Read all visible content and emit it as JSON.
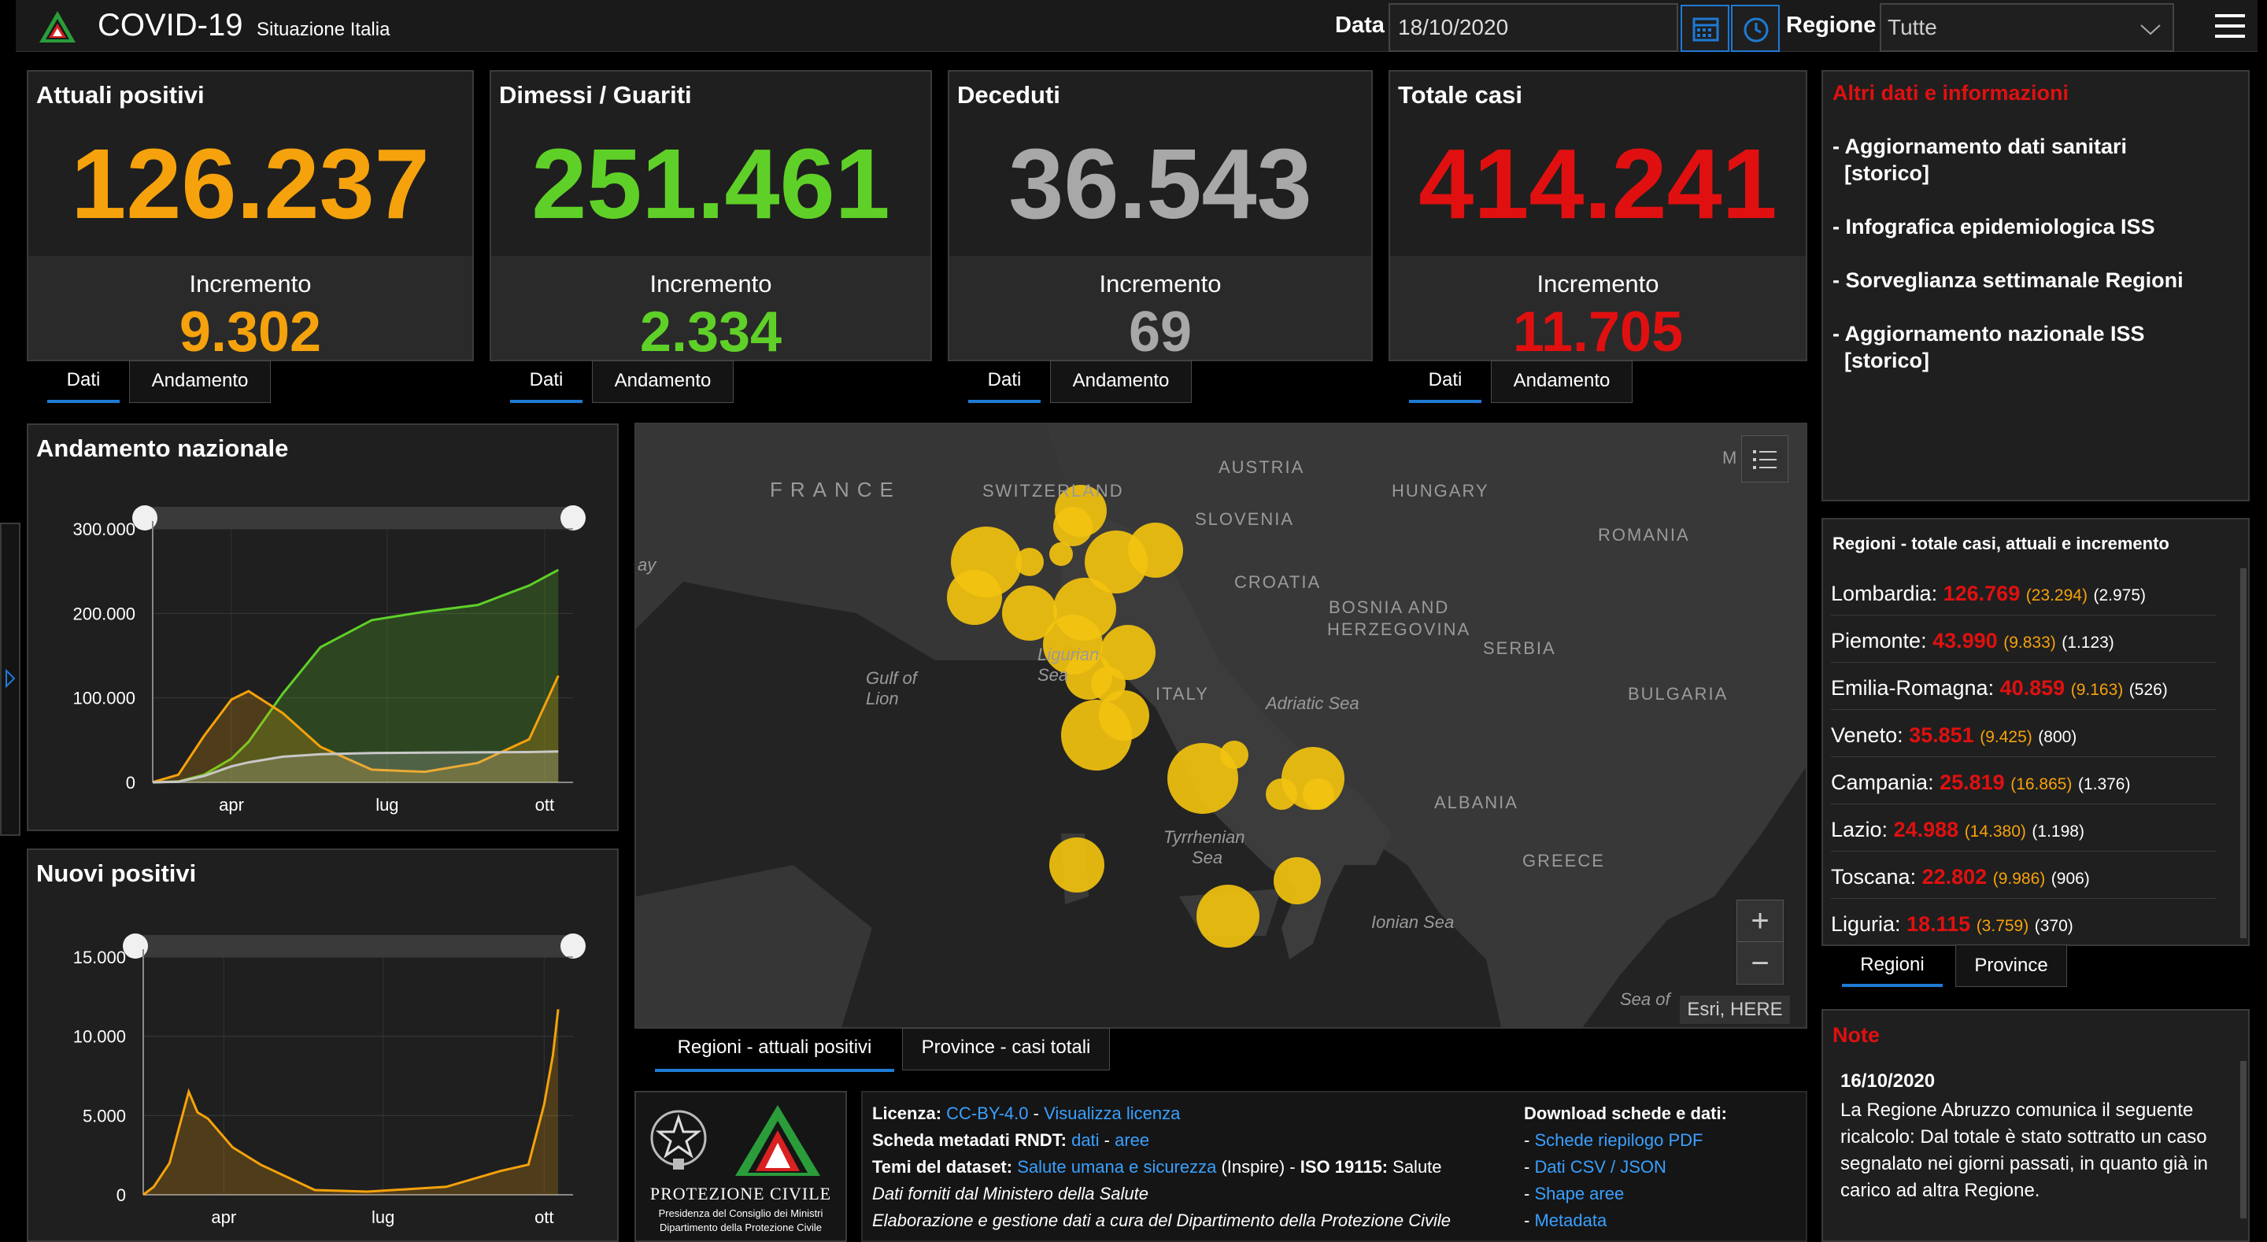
{
  "header": {
    "title": "COVID-19",
    "subtitle": "Situazione Italia",
    "data_label": "Data",
    "date_value": "18/10/2020",
    "regione_label": "Regione",
    "regione_value": "Tutte"
  },
  "cards": [
    {
      "title": "Attuali positivi",
      "value": "126.237",
      "inc_label": "Incremento",
      "inc_value": "9.302",
      "color": "#f5a20c"
    },
    {
      "title": "Dimessi / Guariti",
      "value": "251.461",
      "inc_label": "Incremento",
      "inc_value": "2.334",
      "color": "#5fd028"
    },
    {
      "title": "Deceduti",
      "value": "36.543",
      "inc_label": "Incremento",
      "inc_value": "69",
      "color": "#a8a8a8"
    },
    {
      "title": "Totale casi",
      "value": "414.241",
      "inc_label": "Incremento",
      "inc_value": "11.705",
      "color": "#e01010"
    }
  ],
  "card_tabs": {
    "dati": "Dati",
    "andamento": "Andamento"
  },
  "info": {
    "title": "Altri dati e informazioni",
    "items": [
      "- Aggiornamento dati sanitari",
      "  [storico]",
      "- Infografica epidemiologica ISS",
      "- Sorveglianza settimanale Regioni",
      "- Aggiornamento nazionale ISS",
      "  [storico]"
    ]
  },
  "charts": [
    {
      "title": "Andamento nazionale",
      "chart_data": {
        "type": "line",
        "title": "Andamento nazionale",
        "x": [
          "2020-02-24",
          "2020-03-10",
          "2020-03-25",
          "2020-04-10",
          "2020-04-20",
          "2020-05-10",
          "2020-06-01",
          "2020-07-01",
          "2020-08-01",
          "2020-09-01",
          "2020-10-01",
          "2020-10-18"
        ],
        "xticks": [
          "apr",
          "lug",
          "ott"
        ],
        "yticks": [
          "300.000",
          "200.000",
          "100.000",
          "0"
        ],
        "ylim": [
          0,
          300000
        ],
        "series": [
          {
            "color": "#5fd028",
            "values": [
              0,
              1000,
              9000,
              28000,
              48000,
              105000,
              160000,
              192000,
              202000,
              210000,
              233000,
              251461
            ]
          },
          {
            "color": "#f5a20c",
            "values": [
              200,
              9000,
              55000,
              98000,
              108000,
              82000,
              42000,
              15000,
              12500,
              23000,
              51000,
              126237
            ]
          },
          {
            "color": "#c8c8c8",
            "values": [
              10,
              630,
              7500,
              18900,
              23660,
              30400,
              33400,
              34760,
              35150,
              35480,
              35900,
              36543
            ]
          }
        ]
      }
    },
    {
      "title": "Nuovi positivi",
      "chart_data": {
        "type": "area",
        "title": "Nuovi positivi",
        "x": [
          "2020-02-24",
          "2020-03-01",
          "2020-03-10",
          "2020-03-21",
          "2020-03-26",
          "2020-04-01",
          "2020-04-15",
          "2020-05-01",
          "2020-06-01",
          "2020-07-01",
          "2020-08-15",
          "2020-09-15",
          "2020-10-01",
          "2020-10-10",
          "2020-10-15",
          "2020-10-18"
        ],
        "xticks": [
          "apr",
          "lug",
          "ott"
        ],
        "yticks": [
          "15.000",
          "10.000",
          "5.000",
          "0"
        ],
        "ylim": [
          0,
          15000
        ],
        "series": [
          {
            "color": "#f5a20c",
            "values": [
              0,
              500,
              2000,
              6500,
              5200,
              4800,
              3000,
              1900,
              300,
              200,
              500,
              1500,
              1900,
              5700,
              8800,
              11705
            ]
          }
        ]
      }
    }
  ],
  "map": {
    "labels": [
      "FRANCE",
      "SWITZERLAND",
      "AUSTRIA",
      "HUNGARY",
      "SLOVENIA",
      "CROATIA",
      "ROMANIA",
      "BOSNIA AND",
      "HERZEGOVINA",
      "SERBIA",
      "BULGARIA",
      "ITALY",
      "ALBANIA",
      "GREECE",
      "Ligurian",
      "Sea",
      "Gulf of",
      "Lion",
      "Adriatic Sea",
      "Tyrrhenian",
      "Sea",
      "Ionian Sea",
      "Sea of",
      "ay",
      "M"
    ],
    "attribution": "Esri, HERE",
    "tabs": [
      "Regioni - attuali positivi",
      "Province - casi totali"
    ],
    "zoom_in": "+",
    "zoom_out": "−"
  },
  "regions": {
    "title": "Regioni - totale casi, attuali e incremento",
    "rows": [
      {
        "name": "Lombardia:",
        "total": "126.769",
        "current": "(23.294)",
        "inc": "(2.975)"
      },
      {
        "name": "Piemonte:",
        "total": "43.990",
        "current": "(9.833)",
        "inc": "(1.123)"
      },
      {
        "name": "Emilia-Romagna:",
        "total": "40.859",
        "current": "(9.163)",
        "inc": "(526)"
      },
      {
        "name": "Veneto:",
        "total": "35.851",
        "current": "(9.425)",
        "inc": "(800)"
      },
      {
        "name": "Campania:",
        "total": "25.819",
        "current": "(16.865)",
        "inc": "(1.376)"
      },
      {
        "name": "Lazio:",
        "total": "24.988",
        "current": "(14.380)",
        "inc": "(1.198)"
      },
      {
        "name": "Toscana:",
        "total": "22.802",
        "current": "(9.986)",
        "inc": "(906)"
      },
      {
        "name": "Liguria:",
        "total": "18.115",
        "current": "(3.759)",
        "inc": "(370)"
      }
    ],
    "tabs": [
      "Regioni",
      "Province"
    ]
  },
  "notes": {
    "title": "Note",
    "date": "16/10/2020",
    "lines": [
      "La Regione Abruzzo comunica il seguente",
      "ricalcolo: Dal totale è stato sottratto un caso",
      "segnalato nei giorni passati, in quanto già in",
      "carico ad altra Regione."
    ]
  },
  "logo": {
    "protezione": "PROTEZIONE CIVILE",
    "line1": "Presidenza del Consiglio dei Ministri",
    "line2": "Dipartimento della Protezione Civile"
  },
  "license": {
    "licenza_label": "Licenza:",
    "licenza_link": "CC-BY-4.0",
    "sep1": " - ",
    "licenza_link2": "Visualizza licenza",
    "scheda_label": "Scheda metadati RNDT:",
    "scheda_link1": "dati",
    "sep2": " - ",
    "scheda_link2": "aree",
    "temi_label": "Temi del dataset:",
    "temi_link": "Salute umana e sicurezza",
    "temi_rest": " (Inspire) - ",
    "iso_label": "ISO 19115:",
    "iso_value": " Salute",
    "line4": "Dati forniti dal Ministero della Salute",
    "line5": "Elaborazione e gestione dati a cura del Dipartimento della Protezione Civile",
    "download_title": "Download schede e dati:",
    "download_links": [
      "Schede riepilogo PDF",
      "Dati CSV / JSON",
      "Shape aree",
      "Metadata"
    ],
    "dash": "- "
  }
}
